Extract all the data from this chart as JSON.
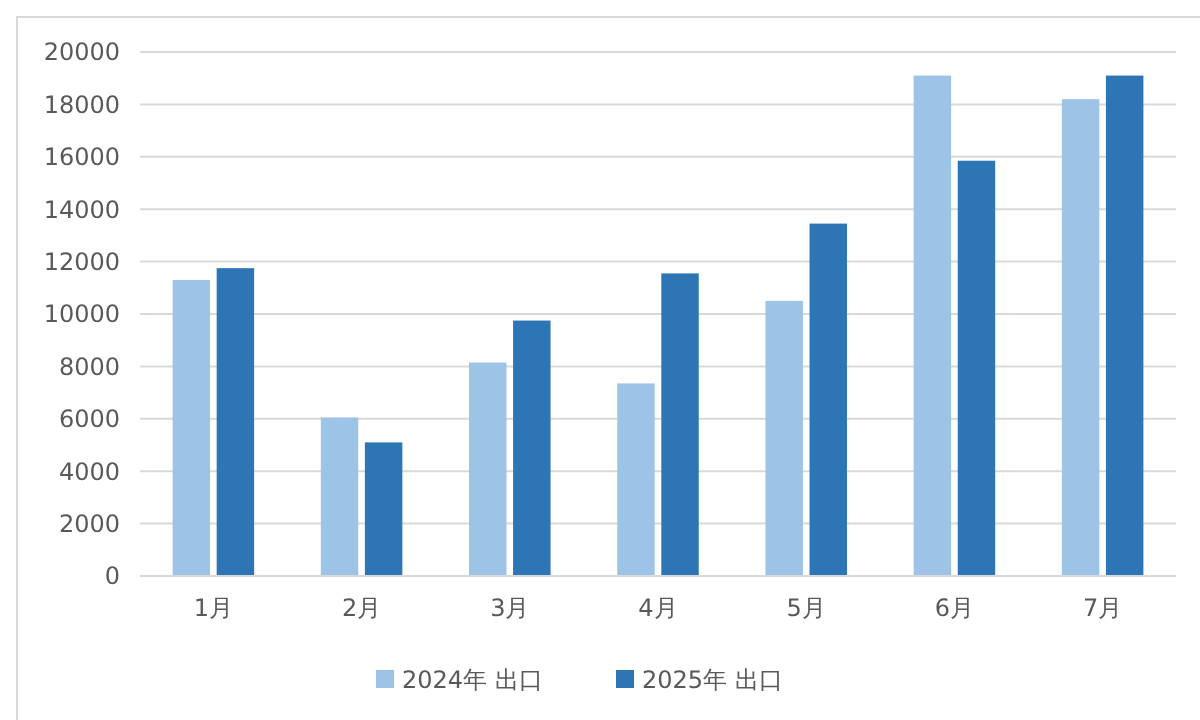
{
  "chart_data": {
    "type": "bar",
    "categories": [
      "1月",
      "2月",
      "3月",
      "4月",
      "5月",
      "6月",
      "7月"
    ],
    "series": [
      {
        "name": "2024年 出口",
        "color": "#9dc3e6",
        "values": [
          11300,
          6050,
          8150,
          7350,
          10500,
          19100,
          18200
        ]
      },
      {
        "name": "2025年 出口",
        "color": "#2e75b6",
        "values": [
          11750,
          5100,
          9750,
          11550,
          13450,
          15850,
          19100
        ]
      }
    ],
    "ylim": [
      0,
      20000
    ],
    "yticks": [
      0,
      2000,
      4000,
      6000,
      8000,
      10000,
      12000,
      14000,
      16000,
      18000,
      20000
    ],
    "grid": "y",
    "legend": "bottom"
  }
}
